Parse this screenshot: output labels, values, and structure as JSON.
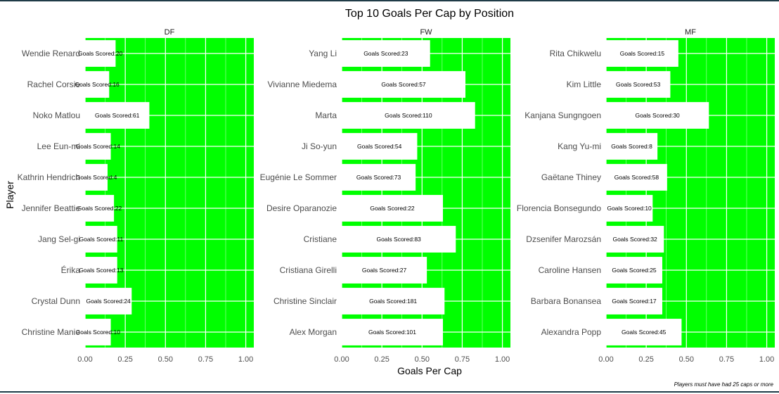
{
  "chart_data": {
    "type": "bar",
    "orientation": "horizontal",
    "title": "Top 10 Goals Per Cap by Position",
    "xlabel": "Goals Per Cap",
    "ylabel": "Player",
    "xlim": [
      0,
      1.05
    ],
    "x_ticks": [
      "0.00",
      "0.25",
      "0.50",
      "0.75",
      "1.00"
    ],
    "x_tick_values": [
      0,
      0.25,
      0.5,
      0.75,
      1.0
    ],
    "grid": true,
    "label_prefix": "Goals Scored:",
    "caption": "Players must have had 25 caps or more",
    "panel_color": "#00ff00",
    "bar_color": "#ffffff",
    "facets": [
      {
        "name": "DF",
        "players": [
          "Wendie Renard",
          "Rachel Corsie",
          "Noko Matlou",
          "Lee Eun-mi",
          "Kathrin Hendrich",
          "Jennifer Beattie",
          "Jang Sel-gi",
          "Érika",
          "Crystal Dunn",
          "Christine Manie"
        ],
        "values": [
          0.19,
          0.15,
          0.4,
          0.16,
          0.14,
          0.18,
          0.2,
          0.2,
          0.29,
          0.16
        ],
        "goals": [
          20,
          16,
          61,
          14,
          4,
          22,
          11,
          13,
          24,
          10
        ]
      },
      {
        "name": "FW",
        "players": [
          "Yang Li",
          "Vivianne Miedema",
          "Marta",
          "Ji So-yun",
          "Eugénie Le Sommer",
          "Desire Oparanozie",
          "Cristiane",
          "Cristiana Girelli",
          "Christine Sinclair",
          "Alex Morgan"
        ],
        "values": [
          0.55,
          0.77,
          0.83,
          0.47,
          0.46,
          0.63,
          0.71,
          0.53,
          0.64,
          0.63
        ],
        "goals": [
          23,
          57,
          110,
          54,
          73,
          22,
          83,
          27,
          181,
          101
        ]
      },
      {
        "name": "MF",
        "players": [
          "Rita Chikwelu",
          "Kim Little",
          "Kanjana Sungngoen",
          "Kang Yu-mi",
          "Gaëtane Thiney",
          "Florencia Bonsegundo",
          "Dzsenifer Marozsán",
          "Caroline Hansen",
          "Barbara Bonansea",
          "Alexandra Popp"
        ],
        "values": [
          0.45,
          0.4,
          0.64,
          0.32,
          0.38,
          0.29,
          0.36,
          0.35,
          0.35,
          0.47
        ],
        "goals": [
          15,
          53,
          30,
          8,
          58,
          10,
          32,
          25,
          17,
          45
        ]
      }
    ]
  }
}
